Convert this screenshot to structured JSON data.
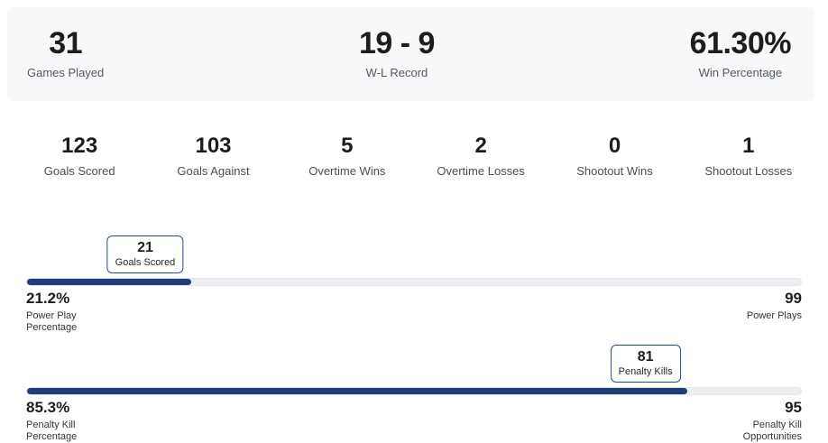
{
  "colors": {
    "accent": "#213c77",
    "marker_border": "#2b4d8e",
    "track": "#eceef2",
    "card_background": "#f7f8fa"
  },
  "hero": {
    "items": [
      {
        "value": "31",
        "label": "Games Played"
      },
      {
        "value": "19 - 9",
        "label": "W-L Record"
      },
      {
        "value": "61.30%",
        "label": "Win Percentage"
      }
    ]
  },
  "stats": [
    {
      "value": "123",
      "label": "Goals Scored"
    },
    {
      "value": "103",
      "label": "Goals Against"
    },
    {
      "value": "5",
      "label": "Overtime Wins"
    },
    {
      "value": "2",
      "label": "Overtime Losses"
    },
    {
      "value": "0",
      "label": "Shootout Wins"
    },
    {
      "value": "1",
      "label": "Shootout Losses"
    }
  ],
  "bars": [
    {
      "marker_value": "21",
      "marker_label": "Goals Scored",
      "fill_pct": 21.2,
      "left_value": "21.2%",
      "left_label": "Power Play\nPercentage",
      "right_value": "99",
      "right_label": "Power Plays"
    },
    {
      "marker_value": "81",
      "marker_label": "Penalty Kills",
      "fill_pct": 85.3,
      "left_value": "85.3%",
      "left_label": "Penalty Kill\nPercentage",
      "right_value": "95",
      "right_label": "Penalty Kill\nOpportunities"
    }
  ]
}
